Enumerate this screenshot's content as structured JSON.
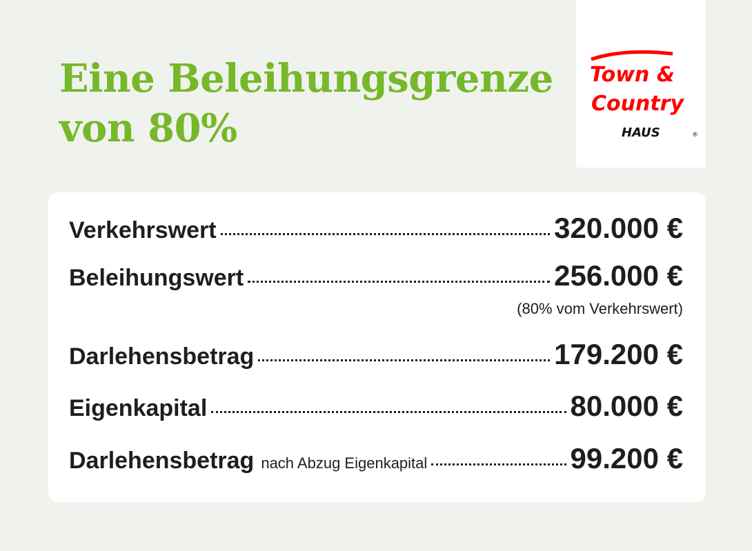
{
  "title": {
    "line1": "Eine Beleihungsgrenze",
    "line2": "von 80%"
  },
  "logo": {
    "text_line1": "Town &",
    "text_line2": "Country",
    "text_line3": "HAUS",
    "registered": "®",
    "color": "#ff0000"
  },
  "colors": {
    "accent": "#76b82a",
    "background": "#f0f2ee",
    "text": "#1e1e1e"
  },
  "rows": [
    {
      "label": "Verkehrswert",
      "value": "320.000 €"
    },
    {
      "label": "Beleihungswert",
      "value": "256.000 €",
      "note": "(80% vom Verkehrswert)"
    },
    {
      "label": "Darlehensbetrag",
      "value": "179.200 €"
    },
    {
      "label": "Eigenkapital",
      "value": "80.000 €"
    },
    {
      "label": "Darlehensbetrag",
      "sub": "nach Abzug Eigenkapital",
      "value": "99.200 €"
    }
  ]
}
